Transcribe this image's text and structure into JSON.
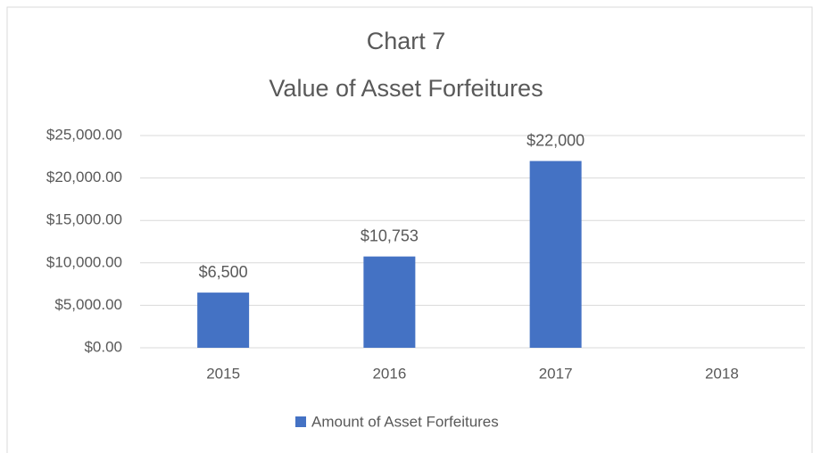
{
  "chart_data": {
    "type": "bar",
    "title": [
      "Chart 7",
      "Value of Asset Forfeitures"
    ],
    "categories": [
      "2015",
      "2016",
      "2017",
      "2018"
    ],
    "series": [
      {
        "name": "Amount of Asset Forfeitures",
        "color": "#4472c4",
        "values": [
          6500,
          10753,
          22000,
          null
        ],
        "value_labels": [
          "$6,500",
          "$10,753",
          "$22,000",
          null
        ]
      }
    ],
    "ylim": [
      0,
      25000
    ],
    "yticks": [
      {
        "value": 0,
        "label": "$0.00"
      },
      {
        "value": 5000,
        "label": "$5,000.00"
      },
      {
        "value": 10000,
        "label": "$10,000.00"
      },
      {
        "value": 15000,
        "label": "$15,000.00"
      },
      {
        "value": 20000,
        "label": "$20,000.00"
      },
      {
        "value": 25000,
        "label": "$25,000.00"
      }
    ],
    "grid": true,
    "legend": "bottom"
  }
}
